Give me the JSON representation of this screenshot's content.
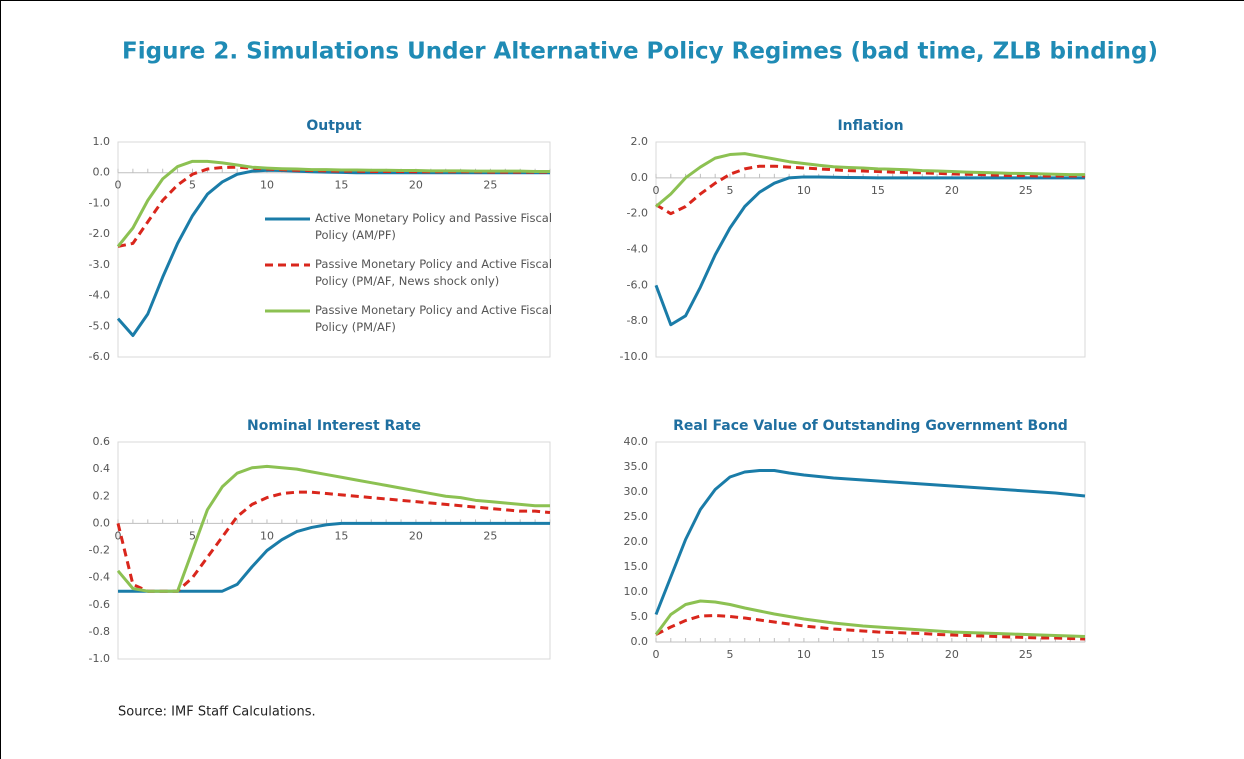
{
  "title": "Figure 2. Simulations Under Alternative Policy Regimes (bad time, ZLB binding)",
  "source": "Source: IMF Staff Calculations.",
  "chart_data": [
    {
      "type": "line",
      "title": "Output",
      "x": [
        0,
        1,
        2,
        3,
        4,
        5,
        6,
        7,
        8,
        9,
        10,
        11,
        12,
        13,
        14,
        15,
        16,
        17,
        18,
        19,
        20,
        21,
        22,
        23,
        24,
        25,
        26,
        27,
        28,
        29
      ],
      "xlim": [
        0,
        29
      ],
      "xticks": [
        0,
        5,
        10,
        15,
        20,
        25
      ],
      "ylim": [
        -6,
        1
      ],
      "yticks": [
        {
          "value": -6,
          "label": "-6.0"
        },
        {
          "value": -5,
          "label": "-5.0"
        },
        {
          "value": -4,
          "label": "-4.0"
        },
        {
          "value": -3,
          "label": "-3.0"
        },
        {
          "value": -2,
          "label": "-2.0"
        },
        {
          "value": -1,
          "label": "-1.0"
        },
        {
          "value": 0,
          "label": "0.0"
        },
        {
          "value": 1,
          "label": "1.0"
        }
      ],
      "grid": false,
      "series": [
        {
          "name": "Active Monetary Policy and Passive Fiscal Policy (AM/PF)",
          "color": "#1a7ca8",
          "dash": false,
          "values": [
            -4.75,
            -5.3,
            -4.6,
            -3.4,
            -2.3,
            -1.4,
            -0.7,
            -0.3,
            -0.05,
            0.05,
            0.08,
            0.07,
            0.05,
            0.03,
            0.02,
            0.01,
            0,
            0,
            0,
            0,
            0,
            0,
            0,
            0,
            0,
            0,
            0,
            0,
            0,
            0
          ]
        },
        {
          "name": "Passive Monetary Policy and Active Fiscal Policy (PM/AF, News shock only)",
          "color": "#d9261c",
          "dash": true,
          "values": [
            -2.4,
            -2.3,
            -1.6,
            -0.9,
            -0.4,
            -0.05,
            0.12,
            0.17,
            0.18,
            0.15,
            0.12,
            0.1,
            0.08,
            0.07,
            0.06,
            0.05,
            0.05,
            0.04,
            0.04,
            0.04,
            0.03,
            0.03,
            0.03,
            0.03,
            0.03,
            0.02,
            0.02,
            0.02,
            0.02,
            0.02
          ]
        },
        {
          "name": "Passive Monetary Policy and Active Fiscal Policy (PM/AF)",
          "color": "#8cc152",
          "dash": false,
          "values": [
            -2.4,
            -1.8,
            -0.9,
            -0.2,
            0.2,
            0.37,
            0.37,
            0.32,
            0.25,
            0.18,
            0.15,
            0.13,
            0.12,
            0.1,
            0.1,
            0.09,
            0.09,
            0.08,
            0.08,
            0.07,
            0.07,
            0.06,
            0.06,
            0.06,
            0.05,
            0.05,
            0.05,
            0.05,
            0.04,
            0.04
          ]
        }
      ]
    },
    {
      "type": "line",
      "title": "Inflation",
      "x": [
        0,
        1,
        2,
        3,
        4,
        5,
        6,
        7,
        8,
        9,
        10,
        11,
        12,
        13,
        14,
        15,
        16,
        17,
        18,
        19,
        20,
        21,
        22,
        23,
        24,
        25,
        26,
        27,
        28,
        29
      ],
      "xlim": [
        0,
        29
      ],
      "xticks": [
        0,
        5,
        10,
        15,
        20,
        25
      ],
      "ylim": [
        -10,
        2
      ],
      "yticks": [
        {
          "value": -10,
          "label": "-10.0"
        },
        {
          "value": -8,
          "label": "-8.0"
        },
        {
          "value": -6,
          "label": "-6.0"
        },
        {
          "value": -4,
          "label": "-4.0"
        },
        {
          "value": -2,
          "label": "-2.0"
        },
        {
          "value": 0,
          "label": "0.0"
        },
        {
          "value": 2,
          "label": "2.0"
        }
      ],
      "grid": false,
      "series": [
        {
          "color": "#1a7ca8",
          "dash": false,
          "values": [
            -6,
            -8.2,
            -7.7,
            -6.1,
            -4.3,
            -2.8,
            -1.6,
            -0.8,
            -0.3,
            0,
            0.05,
            0.05,
            0.03,
            0.02,
            0.01,
            0,
            0,
            0,
            0,
            0,
            0,
            0,
            0,
            0,
            0,
            0,
            0,
            0,
            0,
            0
          ]
        },
        {
          "color": "#d9261c",
          "dash": true,
          "values": [
            -1.5,
            -2,
            -1.6,
            -0.9,
            -0.3,
            0.2,
            0.5,
            0.65,
            0.65,
            0.6,
            0.55,
            0.5,
            0.45,
            0.4,
            0.38,
            0.35,
            0.32,
            0.3,
            0.28,
            0.25,
            0.22,
            0.2,
            0.18,
            0.15,
            0.13,
            0.12,
            0.1,
            0.1,
            0.1,
            0.1
          ]
        },
        {
          "color": "#8cc152",
          "dash": false,
          "values": [
            -1.6,
            -0.9,
            0,
            0.6,
            1.1,
            1.3,
            1.35,
            1.2,
            1.05,
            0.9,
            0.8,
            0.7,
            0.62,
            0.58,
            0.55,
            0.5,
            0.48,
            0.45,
            0.4,
            0.38,
            0.35,
            0.32,
            0.3,
            0.28,
            0.25,
            0.24,
            0.22,
            0.2,
            0.18,
            0.18
          ]
        }
      ]
    },
    {
      "type": "line",
      "title": "Nominal Interest Rate",
      "x": [
        0,
        1,
        2,
        3,
        4,
        5,
        6,
        7,
        8,
        9,
        10,
        11,
        12,
        13,
        14,
        15,
        16,
        17,
        18,
        19,
        20,
        21,
        22,
        23,
        24,
        25,
        26,
        27,
        28,
        29
      ],
      "xlim": [
        0,
        29
      ],
      "xticks": [
        0,
        5,
        10,
        15,
        20,
        25
      ],
      "ylim": [
        -1,
        0.6
      ],
      "yticks": [
        {
          "value": -1,
          "label": "-1.0"
        },
        {
          "value": -0.8,
          "label": "-0.8"
        },
        {
          "value": -0.6,
          "label": "-0.6"
        },
        {
          "value": -0.4,
          "label": "-0.4"
        },
        {
          "value": -0.2,
          "label": "-0.2"
        },
        {
          "value": 0,
          "label": "0.0"
        },
        {
          "value": 0.2,
          "label": "0.2"
        },
        {
          "value": 0.4,
          "label": "0.4"
        },
        {
          "value": 0.6,
          "label": "0.6"
        }
      ],
      "grid": false,
      "series": [
        {
          "color": "#1a7ca8",
          "dash": false,
          "values": [
            -0.5,
            -0.5,
            -0.5,
            -0.5,
            -0.5,
            -0.5,
            -0.5,
            -0.5,
            -0.45,
            -0.32,
            -0.2,
            -0.12,
            -0.06,
            -0.03,
            -0.01,
            0,
            0,
            0,
            0,
            0,
            0,
            0,
            0,
            0,
            0,
            0,
            0,
            0,
            0,
            0
          ]
        },
        {
          "color": "#d9261c",
          "dash": true,
          "values": [
            0,
            -0.45,
            -0.5,
            -0.5,
            -0.5,
            -0.4,
            -0.25,
            -0.1,
            0.05,
            0.14,
            0.19,
            0.22,
            0.23,
            0.23,
            0.22,
            0.21,
            0.2,
            0.19,
            0.18,
            0.17,
            0.16,
            0.15,
            0.14,
            0.13,
            0.12,
            0.11,
            0.1,
            0.09,
            0.09,
            0.08
          ]
        },
        {
          "color": "#8cc152",
          "dash": false,
          "values": [
            -0.35,
            -0.48,
            -0.5,
            -0.5,
            -0.5,
            -0.2,
            0.1,
            0.27,
            0.37,
            0.41,
            0.42,
            0.41,
            0.4,
            0.38,
            0.36,
            0.34,
            0.32,
            0.3,
            0.28,
            0.26,
            0.24,
            0.22,
            0.2,
            0.19,
            0.17,
            0.16,
            0.15,
            0.14,
            0.13,
            0.13
          ]
        }
      ]
    },
    {
      "type": "line",
      "title": "Real Face Value of Outstanding Government Bond",
      "x": [
        0,
        1,
        2,
        3,
        4,
        5,
        6,
        7,
        8,
        9,
        10,
        11,
        12,
        13,
        14,
        15,
        16,
        17,
        18,
        19,
        20,
        21,
        22,
        23,
        24,
        25,
        26,
        27,
        28,
        29
      ],
      "xlim": [
        0,
        29
      ],
      "xticks": [
        0,
        5,
        10,
        15,
        20,
        25
      ],
      "ylim": [
        0,
        40
      ],
      "yticks": [
        {
          "value": 0,
          "label": "0.0"
        },
        {
          "value": 5,
          "label": "5.0"
        },
        {
          "value": 10,
          "label": "10.0"
        },
        {
          "value": 15,
          "label": "15.0"
        },
        {
          "value": 20,
          "label": "20.0"
        },
        {
          "value": 25,
          "label": "25.0"
        },
        {
          "value": 30,
          "label": "30.0"
        },
        {
          "value": 35,
          "label": "35.0"
        },
        {
          "value": 40,
          "label": "40.0"
        }
      ],
      "grid": false,
      "series": [
        {
          "color": "#1a7ca8",
          "dash": false,
          "values": [
            5.5,
            13,
            20.5,
            26.5,
            30.5,
            33,
            34,
            34.3,
            34.3,
            33.8,
            33.4,
            33.1,
            32.8,
            32.6,
            32.4,
            32.2,
            32,
            31.8,
            31.6,
            31.4,
            31.2,
            31,
            30.8,
            30.6,
            30.4,
            30.2,
            30,
            29.8,
            29.5,
            29.2
          ]
        },
        {
          "color": "#d9261c",
          "dash": true,
          "values": [
            1.5,
            3,
            4.3,
            5.2,
            5.3,
            5.1,
            4.8,
            4.4,
            4,
            3.6,
            3.2,
            2.9,
            2.6,
            2.4,
            2.2,
            2,
            1.9,
            1.8,
            1.7,
            1.5,
            1.4,
            1.3,
            1.2,
            1.1,
            1,
            0.9,
            0.8,
            0.8,
            0.7,
            0.6
          ]
        },
        {
          "color": "#8cc152",
          "dash": false,
          "values": [
            1.5,
            5.5,
            7.5,
            8.2,
            8,
            7.5,
            6.8,
            6.2,
            5.6,
            5.1,
            4.6,
            4.2,
            3.8,
            3.5,
            3.2,
            3,
            2.8,
            2.6,
            2.4,
            2.2,
            2,
            1.9,
            1.8,
            1.7,
            1.6,
            1.5,
            1.4,
            1.3,
            1.2,
            1.1
          ]
        }
      ]
    }
  ]
}
